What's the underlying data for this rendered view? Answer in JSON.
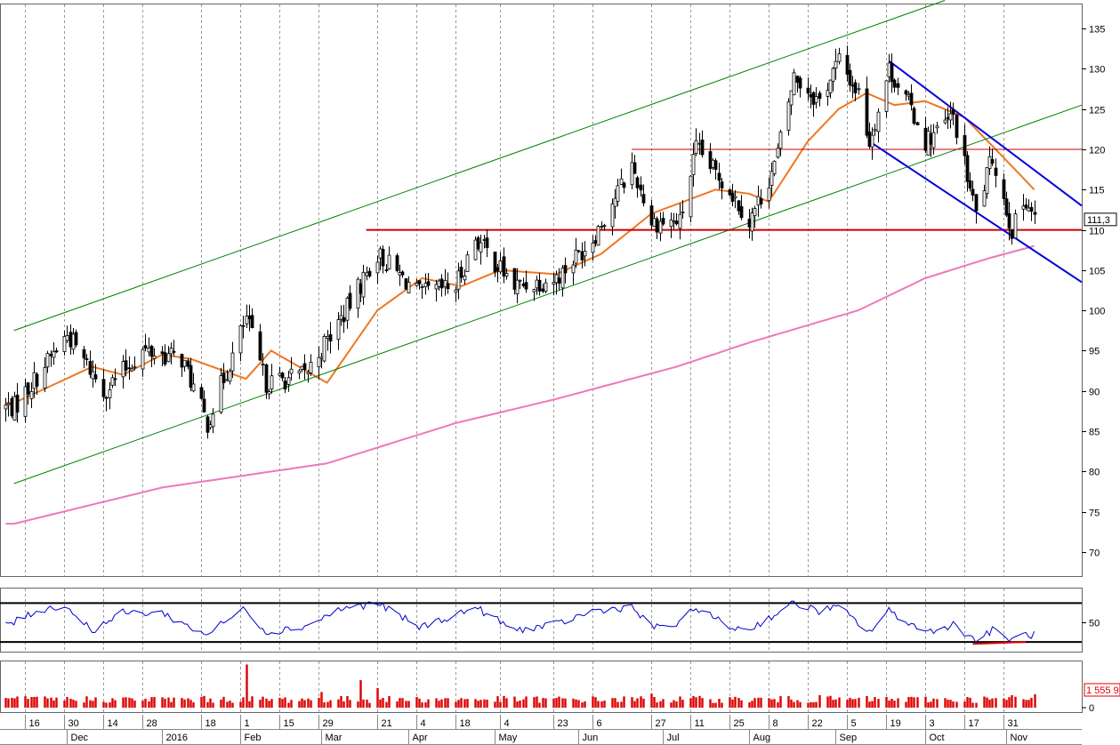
{
  "chart_data": [
    {
      "type": "candlestick",
      "panel": "price",
      "y_ticks": [
        135,
        130,
        125,
        120,
        115,
        110,
        105,
        100,
        95,
        90,
        85,
        80,
        75,
        70
      ],
      "ylim": [
        67,
        138
      ],
      "last_value_label": "111,3",
      "grid": "vertical dotted",
      "key_points": [
        {
          "date": "2015-11-12",
          "close": 88
        },
        {
          "date": "2015-12-01",
          "close": 97
        },
        {
          "date": "2015-12-14",
          "close": 90
        },
        {
          "date": "2015-12-28",
          "close": 95
        },
        {
          "date": "2016-01-11",
          "close": 94
        },
        {
          "date": "2016-01-20",
          "close": 86
        },
        {
          "date": "2016-02-03",
          "close": 99
        },
        {
          "date": "2016-02-10",
          "close": 91
        },
        {
          "date": "2016-02-24",
          "close": 92
        },
        {
          "date": "2016-03-08",
          "close": 99
        },
        {
          "date": "2016-03-21",
          "close": 107
        },
        {
          "date": "2016-04-05",
          "close": 102
        },
        {
          "date": "2016-04-18",
          "close": 103
        },
        {
          "date": "2016-04-25",
          "close": 109
        },
        {
          "date": "2016-05-09",
          "close": 103
        },
        {
          "date": "2016-05-24",
          "close": 104
        },
        {
          "date": "2016-06-06",
          "close": 109
        },
        {
          "date": "2016-06-20",
          "close": 118
        },
        {
          "date": "2016-06-27",
          "close": 111
        },
        {
          "date": "2016-07-07",
          "close": 111
        },
        {
          "date": "2016-07-13",
          "close": 120
        },
        {
          "date": "2016-07-25",
          "close": 115
        },
        {
          "date": "2016-08-01",
          "close": 111
        },
        {
          "date": "2016-08-10",
          "close": 118
        },
        {
          "date": "2016-08-17",
          "close": 129
        },
        {
          "date": "2016-08-26",
          "close": 126
        },
        {
          "date": "2016-09-02",
          "close": 131
        },
        {
          "date": "2016-09-09",
          "close": 127
        },
        {
          "date": "2016-09-13",
          "close": 121
        },
        {
          "date": "2016-09-20",
          "close": 130
        },
        {
          "date": "2016-09-28",
          "close": 125
        },
        {
          "date": "2016-10-03",
          "close": 121
        },
        {
          "date": "2016-10-13",
          "close": 124
        },
        {
          "date": "2016-10-21",
          "close": 112
        },
        {
          "date": "2016-10-27",
          "close": 119
        },
        {
          "date": "2016-11-03",
          "close": 110
        },
        {
          "date": "2016-11-08",
          "close": 114
        },
        {
          "date": "2016-11-11",
          "close": 111.3
        }
      ],
      "moving_averages": [
        {
          "name": "short MA",
          "color": "#ee7722",
          "points": [
            {
              "date": "2015-11-12",
              "v": 88.5
            },
            {
              "date": "2015-12-10",
              "v": 93
            },
            {
              "date": "2015-12-21",
              "v": 92
            },
            {
              "date": "2016-01-04",
              "v": 94.5
            },
            {
              "date": "2016-01-14",
              "v": 94
            },
            {
              "date": "2016-02-03",
              "v": 91.5
            },
            {
              "date": "2016-02-12",
              "v": 95
            },
            {
              "date": "2016-03-03",
              "v": 91
            },
            {
              "date": "2016-03-21",
              "v": 100
            },
            {
              "date": "2016-04-06",
              "v": 104
            },
            {
              "date": "2016-04-20",
              "v": 103
            },
            {
              "date": "2016-05-04",
              "v": 105
            },
            {
              "date": "2016-05-24",
              "v": 104.5
            },
            {
              "date": "2016-06-09",
              "v": 107
            },
            {
              "date": "2016-06-27",
              "v": 112
            },
            {
              "date": "2016-07-20",
              "v": 115
            },
            {
              "date": "2016-08-01",
              "v": 114.5
            },
            {
              "date": "2016-08-08",
              "v": 113.5
            },
            {
              "date": "2016-08-22",
              "v": 121
            },
            {
              "date": "2016-09-02",
              "v": 125
            },
            {
              "date": "2016-09-12",
              "v": 127
            },
            {
              "date": "2016-09-22",
              "v": 125.5
            },
            {
              "date": "2016-10-03",
              "v": 126
            },
            {
              "date": "2016-10-17",
              "v": 124
            },
            {
              "date": "2016-10-31",
              "v": 119
            },
            {
              "date": "2016-11-11",
              "v": 115
            }
          ]
        },
        {
          "name": "long MA",
          "color": "#ee77bb",
          "points": [
            {
              "date": "2015-11-12",
              "v": 73.5
            },
            {
              "date": "2016-01-04",
              "v": 78
            },
            {
              "date": "2016-03-03",
              "v": 81
            },
            {
              "date": "2016-04-18",
              "v": 86
            },
            {
              "date": "2016-05-24",
              "v": 89
            },
            {
              "date": "2016-07-06",
              "v": 93
            },
            {
              "date": "2016-08-01",
              "v": 96
            },
            {
              "date": "2016-09-09",
              "v": 100
            },
            {
              "date": "2016-10-03",
              "v": 104
            },
            {
              "date": "2016-10-26",
              "v": 106.5
            },
            {
              "date": "2016-11-11",
              "v": 108
            }
          ]
        }
      ],
      "trend_lines": [
        {
          "color": "#008000",
          "from": {
            "date": "2015-11-12",
            "v": 97.5
          },
          "to": {
            "date": "2016-10-10",
            "v": 138.5
          }
        },
        {
          "color": "#008000",
          "from": {
            "date": "2015-11-12",
            "v": 78.5
          },
          "to": {
            "date": "2016-11-28",
            "v": 125.5
          }
        },
        {
          "color": "#cc0000",
          "from": {
            "date": "2016-03-17",
            "v": 110
          },
          "to": {
            "date": "2016-11-28",
            "v": 110
          }
        },
        {
          "color": "#cc0000",
          "from": {
            "date": "2016-06-20",
            "v": 120
          },
          "to": {
            "date": "2016-11-28",
            "v": 120
          }
        },
        {
          "color": "#0000dd",
          "from": {
            "date": "2016-09-20",
            "v": 131
          },
          "to": {
            "date": "2016-11-28",
            "v": 113
          }
        },
        {
          "color": "#0000dd",
          "from": {
            "date": "2016-09-13",
            "v": 121
          },
          "to": {
            "date": "2016-11-28",
            "v": 103.5
          }
        }
      ]
    },
    {
      "type": "line",
      "panel": "oscillator",
      "y_ticks": [
        50
      ],
      "ylim": [
        20,
        85
      ],
      "levels": [
        70,
        30
      ],
      "series": [
        {
          "color": "#0000cc",
          "points": [
            {
              "date": "2015-11-12",
              "v": 50
            },
            {
              "date": "2015-11-20",
              "v": 62
            },
            {
              "date": "2015-11-30",
              "v": 68
            },
            {
              "date": "2015-12-10",
              "v": 42
            },
            {
              "date": "2015-12-21",
              "v": 60
            },
            {
              "date": "2016-01-04",
              "v": 60
            },
            {
              "date": "2016-01-14",
              "v": 45
            },
            {
              "date": "2016-01-20",
              "v": 38
            },
            {
              "date": "2016-02-03",
              "v": 65
            },
            {
              "date": "2016-02-10",
              "v": 40
            },
            {
              "date": "2016-02-24",
              "v": 46
            },
            {
              "date": "2016-03-08",
              "v": 64
            },
            {
              "date": "2016-03-21",
              "v": 70
            },
            {
              "date": "2016-04-05",
              "v": 45
            },
            {
              "date": "2016-04-18",
              "v": 58
            },
            {
              "date": "2016-04-25",
              "v": 66
            },
            {
              "date": "2016-05-09",
              "v": 42
            },
            {
              "date": "2016-05-24",
              "v": 48
            },
            {
              "date": "2016-06-06",
              "v": 62
            },
            {
              "date": "2016-06-20",
              "v": 66
            },
            {
              "date": "2016-06-27",
              "v": 45
            },
            {
              "date": "2016-07-07",
              "v": 48
            },
            {
              "date": "2016-07-13",
              "v": 66
            },
            {
              "date": "2016-07-25",
              "v": 45
            },
            {
              "date": "2016-08-01",
              "v": 43
            },
            {
              "date": "2016-08-10",
              "v": 58
            },
            {
              "date": "2016-08-17",
              "v": 70
            },
            {
              "date": "2016-08-26",
              "v": 62
            },
            {
              "date": "2016-09-02",
              "v": 66
            },
            {
              "date": "2016-09-13",
              "v": 40
            },
            {
              "date": "2016-09-20",
              "v": 62
            },
            {
              "date": "2016-10-03",
              "v": 40
            },
            {
              "date": "2016-10-13",
              "v": 48
            },
            {
              "date": "2016-10-21",
              "v": 32
            },
            {
              "date": "2016-10-27",
              "v": 42
            },
            {
              "date": "2016-11-03",
              "v": 32
            },
            {
              "date": "2016-11-08",
              "v": 38
            },
            {
              "date": "2016-11-11",
              "v": 37
            }
          ]
        }
      ]
    },
    {
      "type": "bar",
      "panel": "volume",
      "y_ticks": [
        0
      ],
      "ylim": [
        0,
        6
      ],
      "last_value_label": "1 555 9",
      "color": "#dd0000",
      "spikes": [
        {
          "date": "2016-02-03",
          "v": 5.5
        },
        {
          "date": "2016-03-15",
          "v": 3.5
        },
        {
          "date": "2016-03-21",
          "v": 2.5
        },
        {
          "date": "2016-03-01",
          "v": 2.0
        },
        {
          "date": "2016-06-27",
          "v": 1.8
        },
        {
          "date": "2016-08-26",
          "v": 1.6
        },
        {
          "date": "2016-11-03",
          "v": 1.6
        },
        {
          "date": "2016-11-11",
          "v": 1.7
        }
      ]
    }
  ],
  "x_axis": {
    "day_labels": [
      {
        "date": "2015-11-16",
        "label": "16"
      },
      {
        "date": "2015-11-30",
        "label": "30"
      },
      {
        "date": "2015-12-14",
        "label": "14"
      },
      {
        "date": "2015-12-28",
        "label": "28"
      },
      {
        "date": "2016-01-18",
        "label": "18"
      },
      {
        "date": "2016-02-01",
        "label": "1"
      },
      {
        "date": "2016-02-15",
        "label": "15"
      },
      {
        "date": "2016-02-29",
        "label": "29"
      },
      {
        "date": "2016-03-21",
        "label": "21"
      },
      {
        "date": "2016-04-04",
        "label": "4"
      },
      {
        "date": "2016-04-18",
        "label": "18"
      },
      {
        "date": "2016-05-04",
        "label": "4"
      },
      {
        "date": "2016-05-23",
        "label": "23"
      },
      {
        "date": "2016-06-06",
        "label": "6"
      },
      {
        "date": "2016-06-27",
        "label": "27"
      },
      {
        "date": "2016-07-11",
        "label": "11"
      },
      {
        "date": "2016-07-25",
        "label": "25"
      },
      {
        "date": "2016-08-08",
        "label": "8"
      },
      {
        "date": "2016-08-22",
        "label": "22"
      },
      {
        "date": "2016-09-05",
        "label": "5"
      },
      {
        "date": "2016-09-19",
        "label": "19"
      },
      {
        "date": "2016-10-03",
        "label": "3"
      },
      {
        "date": "2016-10-17",
        "label": "17"
      },
      {
        "date": "2016-10-31",
        "label": "31"
      }
    ],
    "month_labels": [
      {
        "date": "2015-12-01",
        "label": "Dec"
      },
      {
        "date": "2016-01-04",
        "label": "2016"
      },
      {
        "date": "2016-02-01",
        "label": "Feb"
      },
      {
        "date": "2016-03-01",
        "label": "Mar"
      },
      {
        "date": "2016-04-01",
        "label": "Apr"
      },
      {
        "date": "2016-05-02",
        "label": "May"
      },
      {
        "date": "2016-06-01",
        "label": "Jun"
      },
      {
        "date": "2016-07-01",
        "label": "Jul"
      },
      {
        "date": "2016-08-01",
        "label": "Aug"
      },
      {
        "date": "2016-09-01",
        "label": "Sep"
      },
      {
        "date": "2016-10-03",
        "label": "Oct"
      },
      {
        "date": "2016-11-01",
        "label": "Nov"
      }
    ]
  }
}
